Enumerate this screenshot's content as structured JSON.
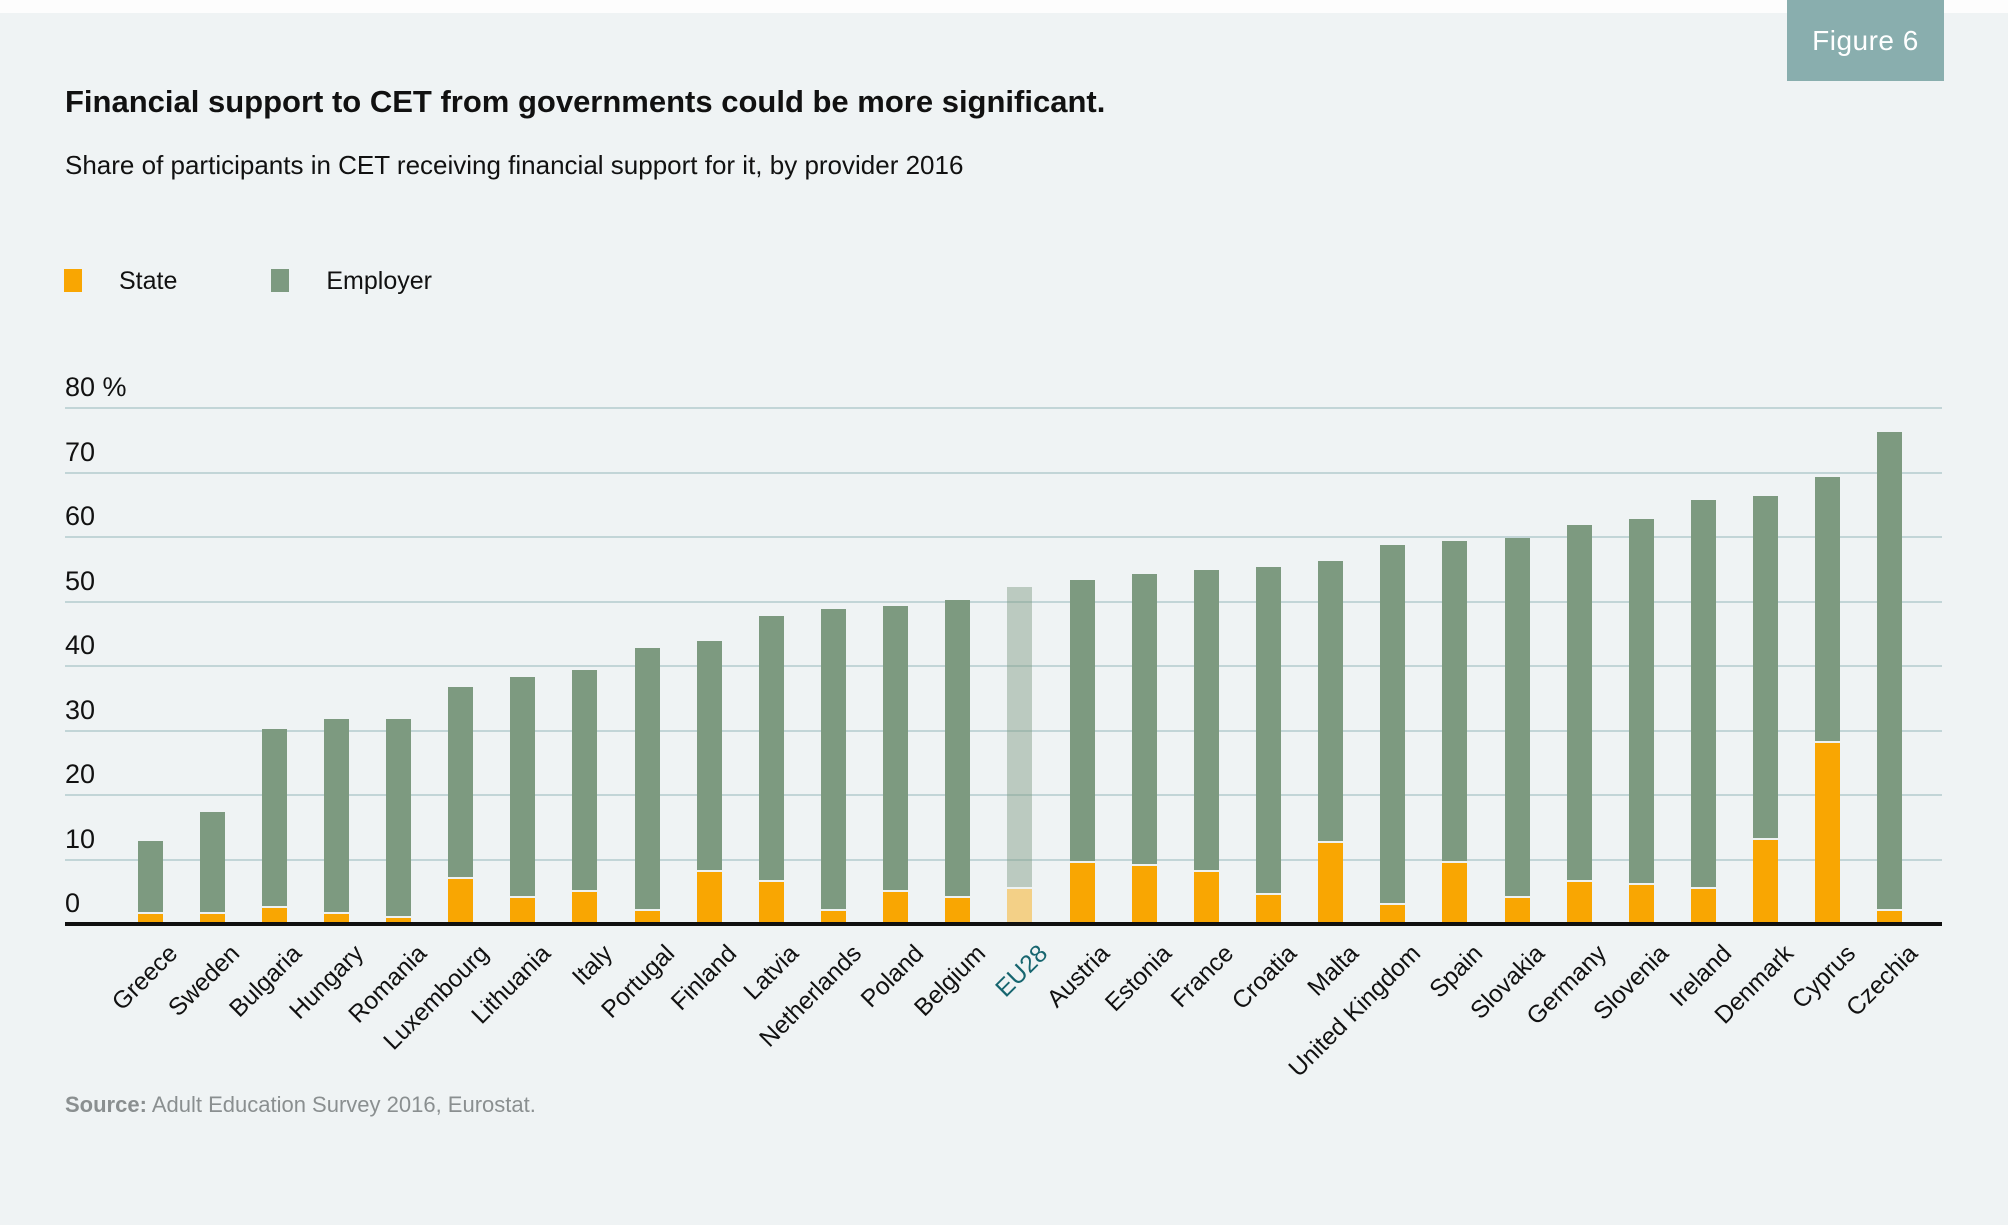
{
  "figure_badge": "Figure 6",
  "header": {
    "title": "Financial support to CET from governments could be more significant.",
    "subtitle": "Share of participants in CET receiving financial support for it, by provider 2016"
  },
  "source": {
    "label": "Source:",
    "text": " Adult Education Survey 2016, Eurostat."
  },
  "colors": {
    "background": "#eff3f4",
    "top_strip": "#fdfdfd",
    "badge_bg": "#89aeae",
    "badge_text": "#ffffff",
    "state": "#f9a602",
    "employer": "#7d9a80",
    "gridline": "#c2d5d7",
    "axis": "#101010",
    "eu28_label": "#16656f",
    "bar_gap": "#edf2f2",
    "source_text": "#8a8f90"
  },
  "chart_data": {
    "type": "bar",
    "stacked": true,
    "unit": "%",
    "ylim": [
      0,
      80
    ],
    "ytick_step": 10,
    "ytick_labels": [
      "0",
      "10",
      "20",
      "30",
      "40",
      "50",
      "60",
      "70",
      "80 %"
    ],
    "grid": "horizontal",
    "legend_position": "top-left",
    "highlight_category": "EU28",
    "highlight_style": "translucent",
    "categories": [
      "Greece",
      "Sweden",
      "Bulgaria",
      "Hungary",
      "Romania",
      "Luxembourg",
      "Lithuania",
      "Italy",
      "Portugal",
      "Finland",
      "Latvia",
      "Netherlands",
      "Poland",
      "Belgium",
      "EU28",
      "Austria",
      "Estonia",
      "France",
      "Croatia",
      "Malta",
      "United Kingdom",
      "Spain",
      "Slovakia",
      "Germany",
      "Slovenia",
      "Ireland",
      "Denmark",
      "Cyprus",
      "Czechia"
    ],
    "series": [
      {
        "name": "State",
        "color": "#f9a602",
        "values": [
          1.5,
          1.5,
          2.5,
          1.5,
          1,
          7,
          4,
          5,
          2,
          8,
          6.5,
          2,
          5,
          4,
          5.5,
          9.5,
          9,
          8,
          4.5,
          12.5,
          3,
          9.5,
          4,
          6.5,
          6,
          5.5,
          13,
          28,
          2
        ]
      },
      {
        "name": "Employer",
        "color": "#7d9a80",
        "values": [
          11,
          15.5,
          27.5,
          30,
          30.5,
          29.5,
          34,
          34,
          40.5,
          35.5,
          41,
          46.5,
          44,
          46,
          46.5,
          43.5,
          45,
          46.5,
          50.5,
          43.5,
          55.5,
          49.5,
          55.5,
          55,
          56.5,
          60,
          53,
          41,
          74
        ]
      }
    ],
    "totals": [
      12.5,
      17,
      30,
      31.5,
      31.5,
      36.5,
      38,
      39,
      42.5,
      43.5,
      47.5,
      48.5,
      49,
      50,
      52,
      53,
      54,
      54.5,
      55,
      56,
      58.5,
      59,
      59.5,
      61.5,
      62.5,
      65.5,
      66,
      69,
      76
    ]
  }
}
